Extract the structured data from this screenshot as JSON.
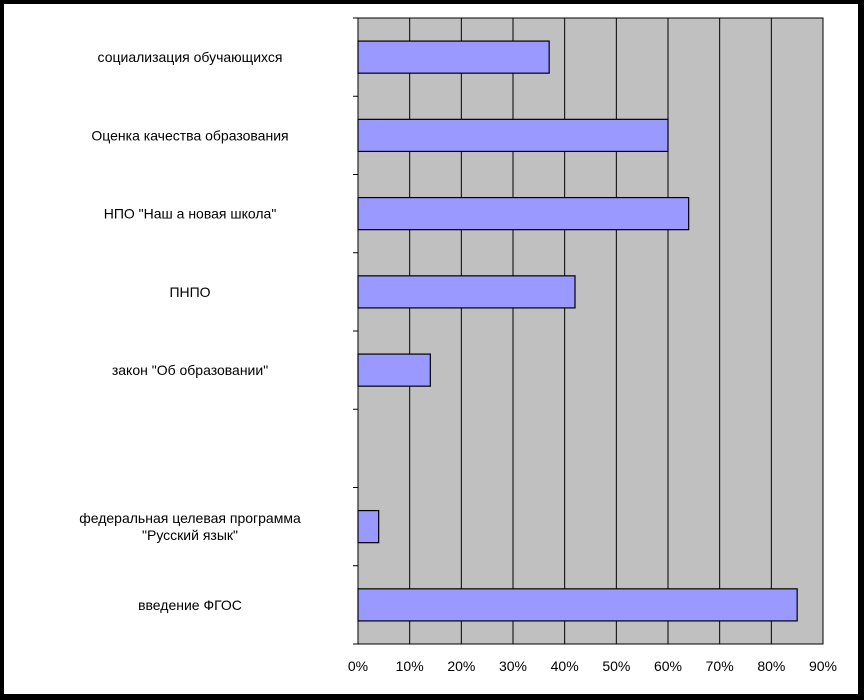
{
  "chart_data": {
    "type": "bar",
    "orientation": "horizontal",
    "categories": [
      "социализация обучающихся",
      "Оценка качества образования",
      "НПО \"Наш а новая школа\"",
      "ПНПО",
      "закон \"Об образовании\"",
      "",
      "федеральная целевая программа \"Русский язык\"",
      "введение ФГОС"
    ],
    "category_lines": [
      [
        "социализация обучающихся"
      ],
      [
        "Оценка качества образования"
      ],
      [
        "НПО \"Наш а новая школа\""
      ],
      [
        "ПНПО"
      ],
      [
        "закон \"Об образовании\""
      ],
      [],
      [
        "федеральная целевая программа",
        "\"Русский язык\""
      ],
      [
        "введение ФГОС"
      ]
    ],
    "values": [
      37,
      60,
      64,
      42,
      14,
      null,
      4,
      85
    ],
    "xlim": [
      0,
      90
    ],
    "xtick_values": [
      0,
      10,
      20,
      30,
      40,
      50,
      60,
      70,
      80,
      90
    ],
    "xtick_labels": [
      "0%",
      "10%",
      "20%",
      "30%",
      "40%",
      "50%",
      "60%",
      "70%",
      "80%",
      "90%"
    ],
    "grid": true,
    "legend": "none",
    "colors": {
      "bar_fill": "#9999FF",
      "bar_stroke": "#000000",
      "plot_bg": "#C0C0C0",
      "frame": "#000000"
    }
  }
}
